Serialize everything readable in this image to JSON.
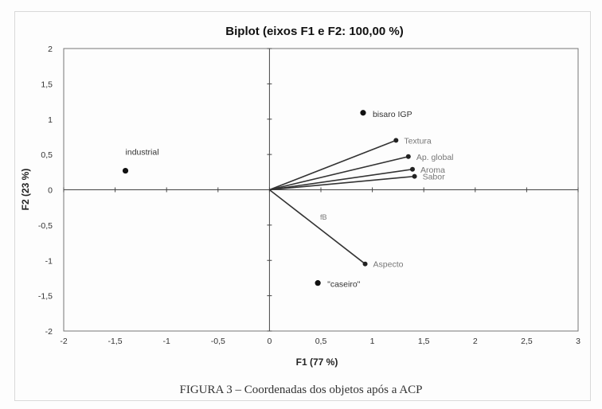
{
  "chart_data": {
    "type": "scatter",
    "title": "Biplot (eixos F1 e F2: 100,00 %)",
    "xlabel": "F1 (77 %)",
    "ylabel": "F2 (23 %)",
    "xlim": [
      -2,
      3
    ],
    "ylim": [
      -2,
      2
    ],
    "xticks": [
      "-2",
      "-1,5",
      "-1",
      "-0,5",
      "0",
      "0,5",
      "1",
      "1,5",
      "2",
      "2,5",
      "3"
    ],
    "yticks": [
      "2",
      "1,5",
      "1",
      "0,5",
      "0",
      "-0,5",
      "-1",
      "-1,5",
      "-2"
    ],
    "grid": false,
    "points": [
      {
        "label": "industrial",
        "x": -1.4,
        "y": 0.27
      },
      {
        "label": "bisaro IGP",
        "x": 0.91,
        "y": 1.09
      },
      {
        "label": "\"caseiro\"",
        "x": 0.47,
        "y": -1.32
      }
    ],
    "vectors": [
      {
        "label": "Textura",
        "x": 1.23,
        "y": 0.7
      },
      {
        "label": "Ap. global",
        "x": 1.35,
        "y": 0.47
      },
      {
        "label": "Aroma",
        "x": 1.39,
        "y": 0.29
      },
      {
        "label": "Sabor",
        "x": 1.41,
        "y": 0.19
      },
      {
        "label": "Aspecto",
        "x": 0.93,
        "y": -1.05
      }
    ],
    "annotation": "fB"
  },
  "caption": "FIGURA 3 – Coordenadas dos objetos após a ACP"
}
